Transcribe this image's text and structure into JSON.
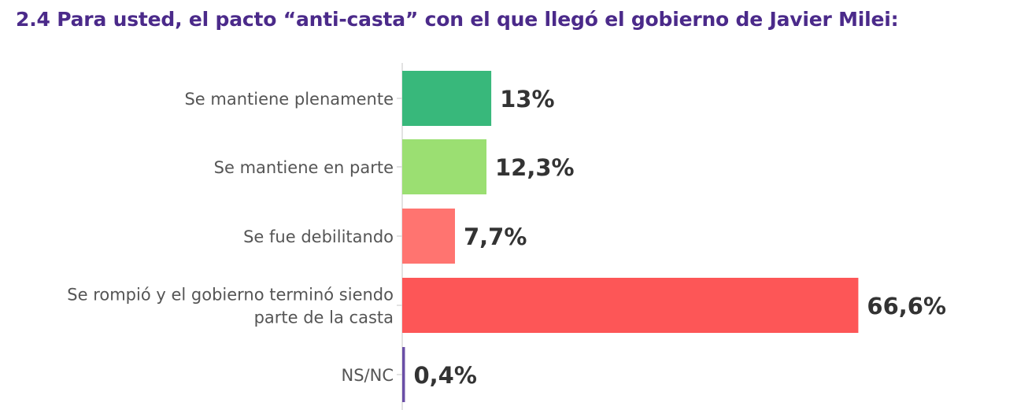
{
  "chart_data": {
    "type": "bar",
    "orientation": "horizontal",
    "title": "2.4 Para usted, el pacto “anti-casta” con el que llegó el gobierno de Javier Milei:",
    "categories": [
      [
        "Se mantiene plenamente"
      ],
      [
        "Se mantiene en parte"
      ],
      [
        "Se fue debilitando"
      ],
      [
        "Se rompió y el gobierno terminó siendo",
        "parte de la casta"
      ],
      [
        "NS/NC"
      ]
    ],
    "values": [
      13,
      12.3,
      7.7,
      66.6,
      0.4
    ],
    "value_labels": [
      "13%",
      "12,3%",
      "7,7%",
      "66,6%",
      "0,4%"
    ],
    "colors": [
      "#38b87b",
      "#9bdf72",
      "#ff7470",
      "#fd5657",
      "#6b4fa6"
    ],
    "axis_color": "#d9d9d9",
    "xlim": [
      0,
      100
    ],
    "xlabel": "",
    "ylabel": "",
    "grid": false,
    "legend": "none"
  }
}
